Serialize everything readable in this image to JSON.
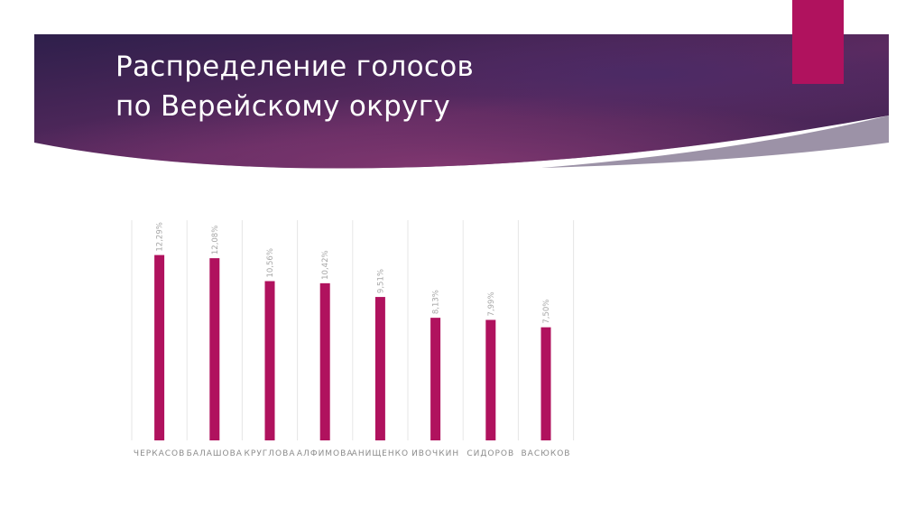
{
  "slide": {
    "title_line1": "Распределение голосов",
    "title_line2": "по Верейскому округу",
    "colors": {
      "banner_dark": "#2e1f4b",
      "banner_mid": "#5b2a60",
      "banner_light": "#7a3670",
      "accent": "#b0125e",
      "bar": "#b0125e",
      "gridline": "#e6e6e6"
    }
  },
  "chart_data": {
    "type": "bar",
    "categories": [
      "ЧЕРКАСОВ",
      "БАЛАШОВА",
      "КРУГЛОВА",
      "АЛФИМОВА",
      "АНИЩЕНКО",
      "ИВОЧКИН",
      "СИДОРОВ",
      "ВАСЮКОВ"
    ],
    "values": [
      12.29,
      12.08,
      10.56,
      10.42,
      9.51,
      8.13,
      7.99,
      7.5
    ],
    "data_labels": [
      "12,29%",
      "12,08%",
      "10,56%",
      "10,42%",
      "9,51%",
      "8,13%",
      "7,99%",
      "7,50%"
    ],
    "title": "",
    "xlabel": "",
    "ylabel": "",
    "ylim": [
      0,
      14.6
    ],
    "grid": "vertical-separators",
    "legend": "none"
  }
}
